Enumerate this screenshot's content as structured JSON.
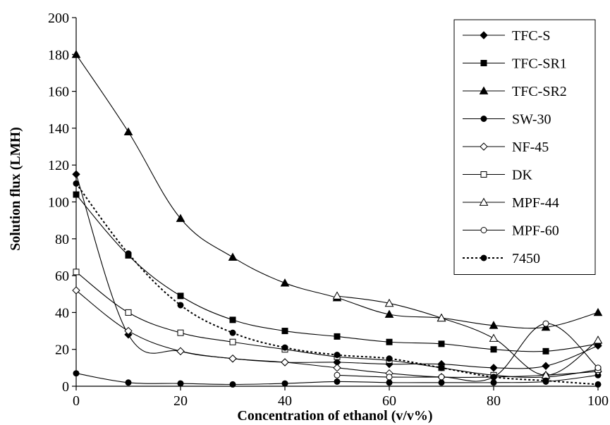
{
  "chart_data": {
    "type": "line",
    "xlabel": "Concentration of ethanol (v/v%)",
    "ylabel": "Solution flux (LMH)",
    "xlim": [
      0,
      100
    ],
    "ylim": [
      0,
      200
    ],
    "xticks": [
      0,
      20,
      40,
      60,
      80,
      100
    ],
    "yticks": [
      0,
      20,
      40,
      60,
      80,
      100,
      120,
      140,
      160,
      180,
      200
    ],
    "grid": false,
    "legend_position": "top-right",
    "x": [
      0,
      10,
      20,
      30,
      40,
      50,
      60,
      70,
      80,
      90,
      100
    ],
    "series": [
      {
        "name": "TFC-S",
        "marker": "diamond-filled",
        "dash": "solid",
        "values": [
          115,
          28,
          19,
          15,
          13,
          13,
          12,
          12,
          10,
          11,
          22
        ]
      },
      {
        "name": "TFC-SR1",
        "marker": "square-filled",
        "dash": "solid",
        "values": [
          104,
          71,
          49,
          36,
          30,
          27,
          24,
          23,
          20,
          19,
          23
        ]
      },
      {
        "name": "TFC-SR2",
        "marker": "triangle-filled",
        "dash": "solid",
        "values": [
          180,
          138,
          91,
          70,
          56,
          48,
          39,
          37,
          33,
          32,
          40
        ]
      },
      {
        "name": "SW-30",
        "marker": "circle-filled",
        "dash": "solid",
        "values": [
          7,
          2,
          1.5,
          1,
          1.5,
          2.5,
          2,
          2,
          2,
          2.5,
          6
        ]
      },
      {
        "name": "NF-45",
        "marker": "diamond-open",
        "dash": "solid",
        "values": [
          52,
          30,
          19,
          15,
          13,
          10,
          7,
          5,
          5,
          6,
          8
        ]
      },
      {
        "name": "DK",
        "marker": "square-open",
        "dash": "solid",
        "values": [
          62,
          40,
          29,
          24,
          20,
          16,
          14,
          10,
          6,
          5,
          9
        ]
      },
      {
        "name": "MPF-44",
        "marker": "triangle-open",
        "dash": "solid",
        "values": [
          null,
          null,
          null,
          null,
          null,
          49,
          45,
          37,
          26,
          6,
          25
        ]
      },
      {
        "name": "MPF-60",
        "marker": "circle-open",
        "dash": "solid",
        "values": [
          null,
          null,
          null,
          null,
          null,
          6,
          5,
          5,
          5,
          34,
          10
        ]
      },
      {
        "name": "7450",
        "marker": "circle-filled",
        "dash": "dotted",
        "values": [
          110,
          72,
          44,
          29,
          21,
          17,
          15,
          10,
          5,
          3,
          1
        ]
      }
    ]
  }
}
